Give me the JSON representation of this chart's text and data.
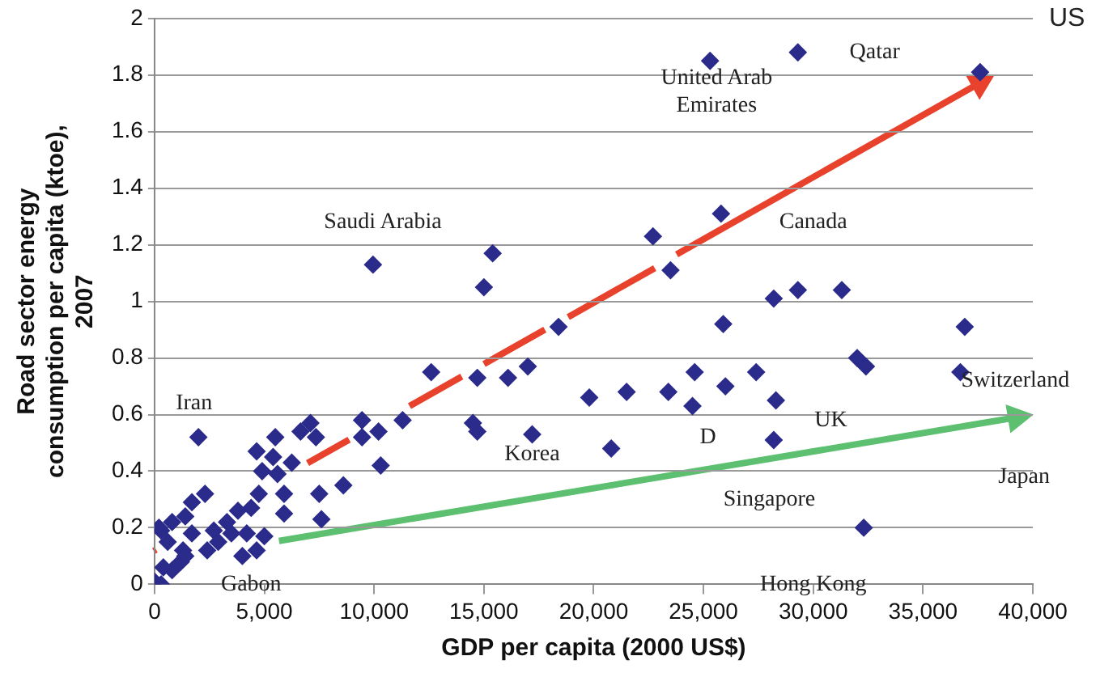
{
  "chart_data": {
    "type": "scatter",
    "xlabel": "GDP per capita (2000 US$)",
    "ylabel": "Road sector energy\nconsumption per capita (ktoe),\n2007",
    "marker": "diamond",
    "grid": "y",
    "legend": false,
    "xlim": [
      0,
      40000
    ],
    "ylim": [
      0,
      2
    ],
    "xticks": [
      0,
      {
        "value": 5000,
        "label": "5,000"
      },
      {
        "value": 10000,
        "label": "10,000"
      },
      {
        "value": 15000,
        "label": "15,000"
      },
      {
        "value": 20000,
        "label": "20,000"
      },
      {
        "value": 25000,
        "label": "25,000"
      },
      {
        "value": 30000,
        "label": "30,000"
      },
      {
        "value": 35000,
        "label": "35,000"
      },
      {
        "value": 40000,
        "label": "40,000"
      }
    ],
    "yticks": [
      0,
      0.2,
      0.4,
      0.6,
      0.8,
      1,
      1.2,
      1.4,
      1.6,
      1.8,
      2
    ],
    "series": [
      {
        "color": "#2b2b8c",
        "x": [
          25300,
          29300,
          37600,
          25800,
          22700,
          23500,
          28200,
          29300,
          31300,
          25900,
          36900,
          18400,
          32000,
          32400,
          24600,
          27400,
          36700,
          19800,
          21500,
          23400,
          26000,
          24500,
          28300,
          20800,
          28200,
          32300,
          9950,
          15400,
          15000,
          12600,
          14700,
          16100,
          17000,
          11300,
          14500,
          14700,
          17200,
          9450,
          10200,
          10300,
          9450,
          8600,
          7500,
          7600,
          6650,
          7100,
          7350,
          6250,
          5500,
          5400,
          5600,
          4650,
          4900,
          5900,
          5900,
          4750,
          4400,
          5000,
          4650,
          3800,
          4000,
          3300,
          2900,
          2000,
          2300,
          1700,
          2400,
          1400,
          800,
          300,
          200,
          600,
          1300,
          1200,
          400,
          0,
          300,
          1700,
          2700,
          3500,
          4200,
          800,
          1400
        ],
        "values": [
          1.85,
          1.88,
          1.81,
          1.31,
          1.23,
          1.11,
          1.01,
          1.04,
          1.04,
          0.92,
          0.91,
          0.91,
          0.8,
          0.77,
          0.75,
          0.75,
          0.75,
          0.66,
          0.68,
          0.68,
          0.7,
          0.63,
          0.65,
          0.48,
          0.51,
          0.2,
          1.13,
          1.17,
          1.05,
          0.75,
          0.73,
          0.73,
          0.77,
          0.58,
          0.57,
          0.54,
          0.53,
          0.58,
          0.54,
          0.42,
          0.52,
          0.35,
          0.32,
          0.23,
          0.54,
          0.57,
          0.52,
          0.43,
          0.52,
          0.45,
          0.39,
          0.47,
          0.4,
          0.32,
          0.25,
          0.32,
          0.27,
          0.17,
          0.12,
          0.26,
          0.1,
          0.22,
          0.15,
          0.52,
          0.32,
          0.29,
          0.12,
          0.24,
          0.22,
          0.19,
          0.2,
          0.15,
          0.12,
          0.08,
          0.06,
          0.01,
          0,
          0.18,
          0.19,
          0.18,
          0.18,
          0.05,
          0.1
        ]
      }
    ],
    "annotations": [
      "US",
      "Saudi Arabia",
      "Iran",
      "Korea",
      "Gabon",
      "United Arab\nEmirates",
      "Qatar",
      "Canada",
      "Switzerland",
      "UK",
      "D",
      "Japan",
      "Singapore",
      "Hong Kong"
    ]
  }
}
